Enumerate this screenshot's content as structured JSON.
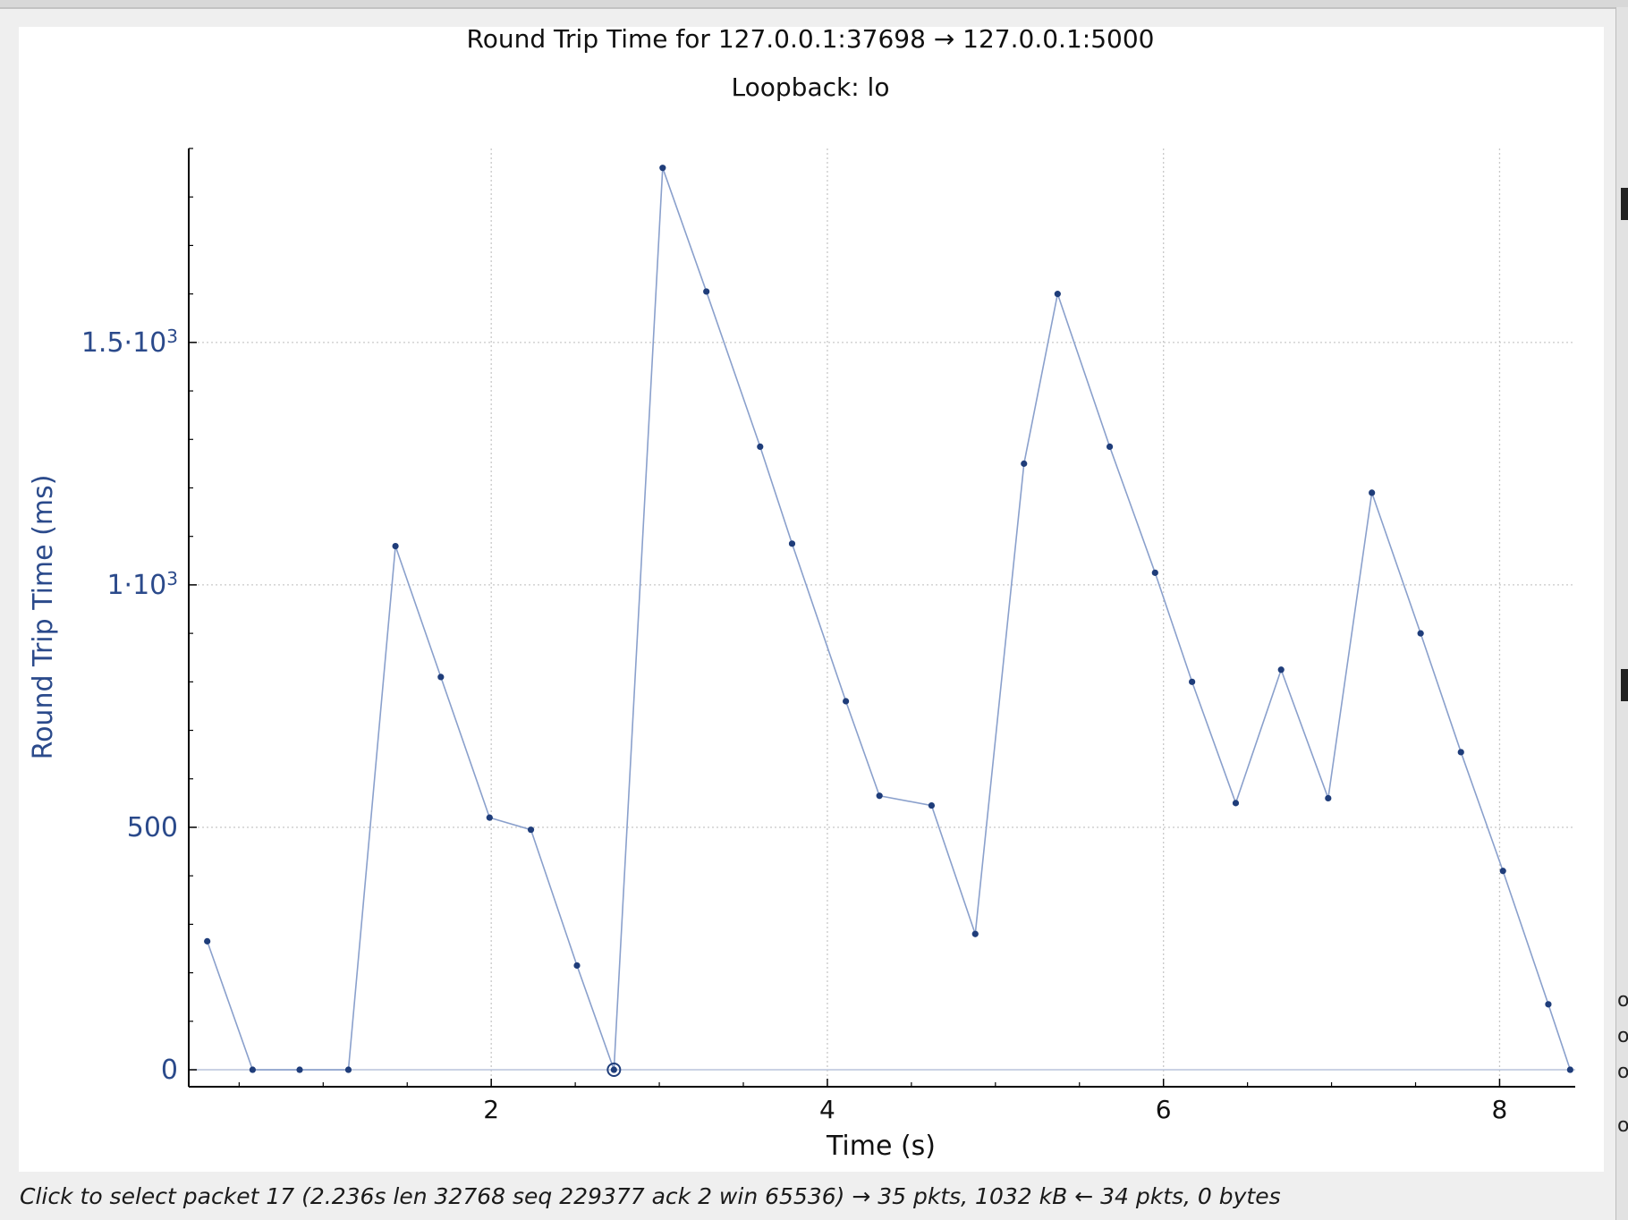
{
  "chart_data": {
    "type": "line",
    "title": "Round Trip Time for 127.0.0.1:37698 → 127.0.0.1:5000",
    "subtitle": "Loopback: lo",
    "xlabel": "Time (s)",
    "ylabel": "Round Trip Time (ms)",
    "xlim": [
      0.2,
      8.45
    ],
    "ylim": [
      -35,
      1900
    ],
    "x_ticks": [
      {
        "value": 2,
        "label": "2"
      },
      {
        "value": 4,
        "label": "4"
      },
      {
        "value": 6,
        "label": "6"
      },
      {
        "value": 8,
        "label": "8"
      }
    ],
    "y_ticks": [
      {
        "value": 0,
        "label": "0",
        "base": "0",
        "exp": ""
      },
      {
        "value": 500,
        "label": "500",
        "base": "500",
        "exp": ""
      },
      {
        "value": 1000,
        "label": "1·10³",
        "base": "1·10",
        "exp": "3"
      },
      {
        "value": 1500,
        "label": "1.5·10³",
        "base": "1.5·10",
        "exp": "3"
      }
    ],
    "grid": true,
    "colors": {
      "series": "#1f3d7a",
      "line": "#8aa0cc",
      "axis": "#000000",
      "grid": "#c8c8c8",
      "label": "#2b4a8b"
    },
    "selected_index": 9,
    "series": [
      {
        "x": [
          0.31,
          0.58,
          0.86,
          1.15,
          1.43,
          1.7,
          1.99,
          2.236,
          2.51,
          2.73,
          3.02,
          3.28,
          3.6,
          3.79,
          4.11,
          4.31,
          4.62,
          4.88,
          5.17,
          5.37,
          5.68,
          5.95,
          6.17,
          6.43,
          6.7,
          6.98,
          7.24,
          7.53,
          7.77,
          8.02,
          8.29,
          8.42
        ],
        "y": [
          265,
          0,
          0,
          0,
          1080,
          810,
          520,
          495,
          215,
          0,
          1860,
          1605,
          1285,
          1085,
          760,
          565,
          545,
          280,
          1250,
          1600,
          1285,
          1025,
          800,
          550,
          825,
          560,
          1190,
          900,
          655,
          410,
          135,
          0
        ]
      }
    ]
  },
  "status": {
    "hint": "Click to select packet 17 (2.236s len 32768 seq 229377 ack 2 win 65536) → 35 pkts, 1032 kB ← 34 pkts, 0 bytes"
  },
  "side_peek": [
    "o",
    "o",
    "o",
    "o"
  ]
}
